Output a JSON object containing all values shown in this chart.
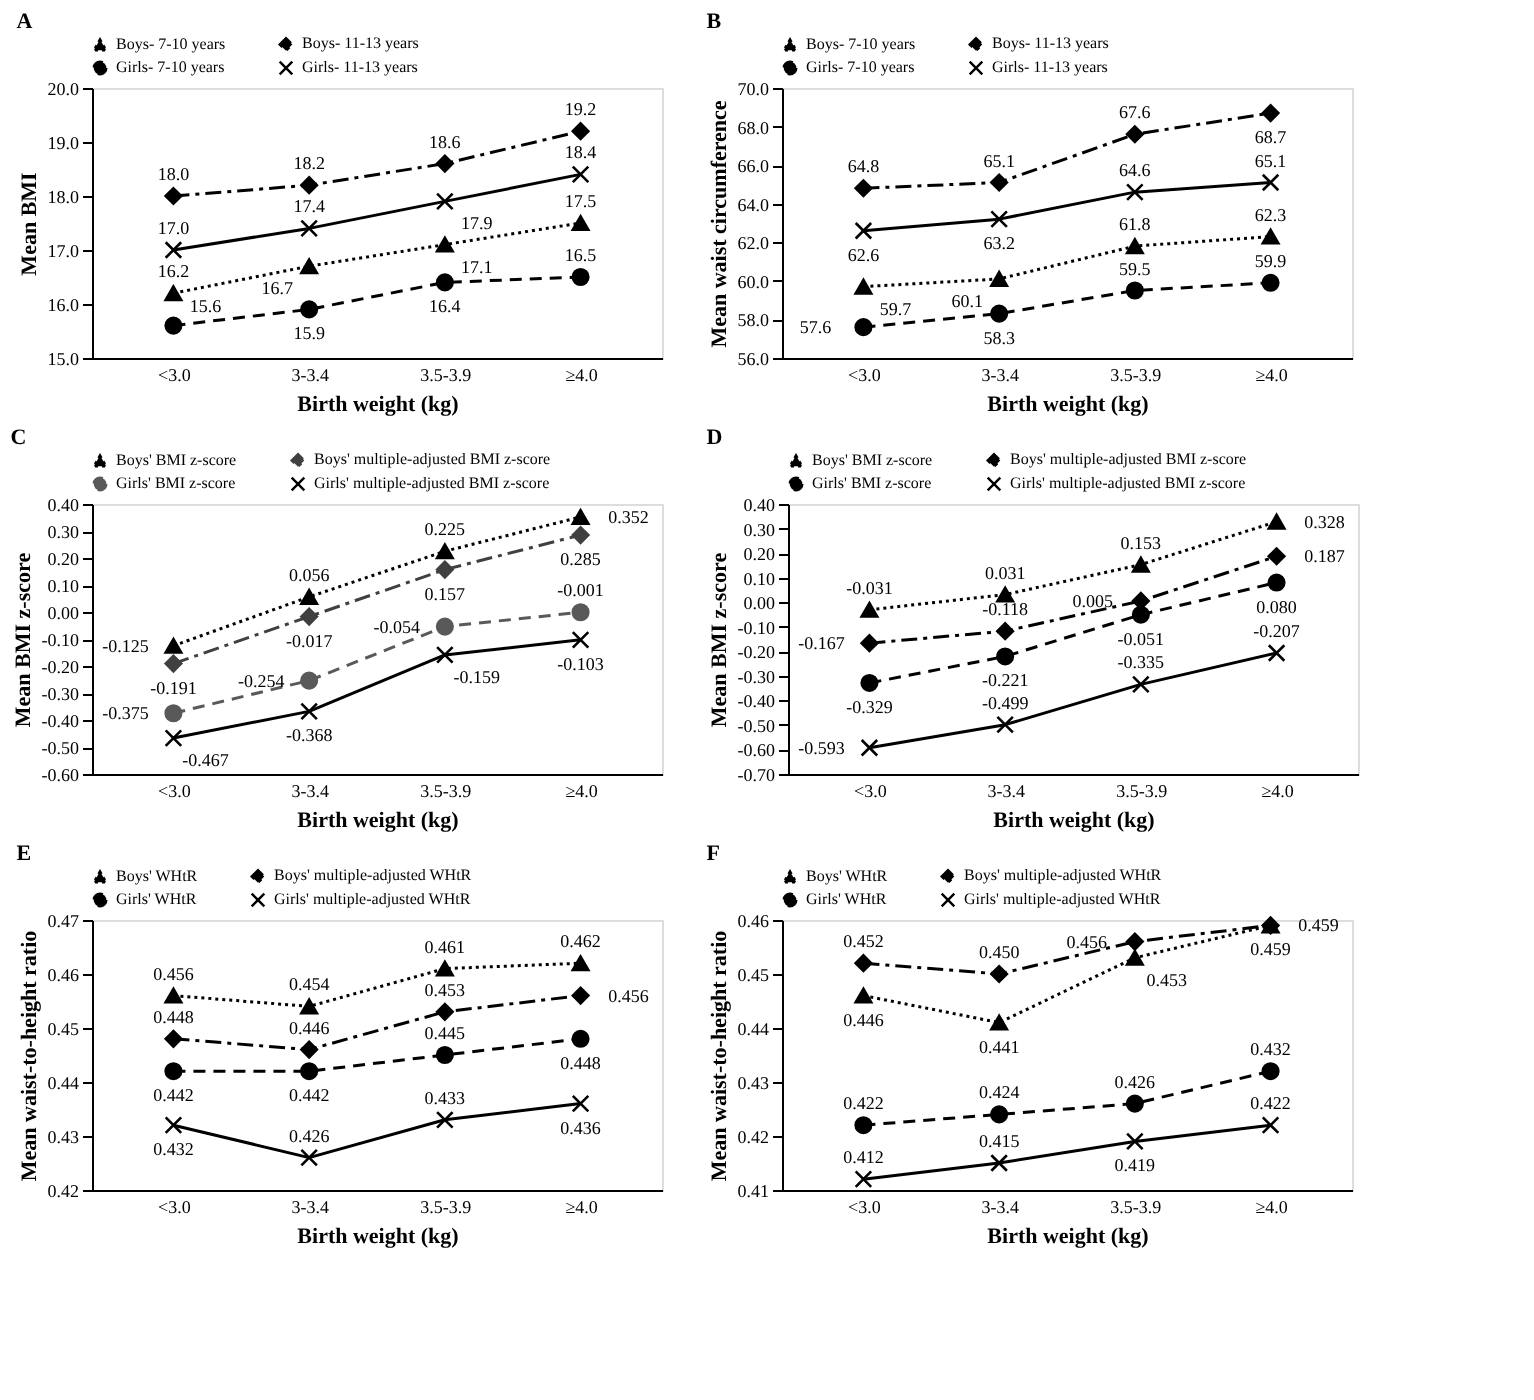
{
  "chart_data": [
    {
      "type": "line",
      "title": "A",
      "xlabel": "Birth weight (kg)",
      "ylabel": "Mean BMI",
      "categories": [
        "<3.0",
        "3-3.4",
        "3.5-3.9",
        "≥4.0"
      ],
      "ylim": [
        15,
        20
      ],
      "yticks": [
        {
          "value": 15,
          "label": "15.0"
        },
        {
          "value": 16,
          "label": "16.0"
        },
        {
          "value": 17,
          "label": "17.0"
        },
        {
          "value": 18,
          "label": "18.0"
        },
        {
          "value": 19,
          "label": "19.0"
        },
        {
          "value": 20,
          "label": "20.0"
        }
      ],
      "grid": false,
      "legend": "top",
      "series": [
        {
          "name": "Boys- 7-10 years",
          "color": "#000000",
          "marker": "triangle",
          "line_style": "dotted",
          "values": [
            16.2,
            16.7,
            17.1,
            17.5
          ],
          "value_labels": [
            "16.2",
            "16.7",
            "17.1",
            "17.5"
          ]
        },
        {
          "name": "Boys- 11-13 years",
          "color": "#000000",
          "marker": "diamond",
          "line_style": "dashdot",
          "values": [
            18.0,
            18.2,
            18.6,
            19.2
          ],
          "value_labels": [
            "18.0",
            "18.2",
            "18.6",
            "19.2"
          ]
        },
        {
          "name": "Girls- 7-10 years",
          "color": "#000000",
          "marker": "circle",
          "line_style": "dashed",
          "values": [
            15.6,
            15.9,
            16.4,
            16.5
          ],
          "value_labels": [
            "15.6",
            "15.9",
            "16.4",
            "16.5"
          ]
        },
        {
          "name": "Girls- 11-13 years",
          "color": "#000000",
          "marker": "cross",
          "line_style": "solid",
          "values": [
            17.0,
            17.4,
            17.9,
            18.4
          ],
          "value_labels": [
            "17.0",
            "17.4",
            "17.9",
            "18.4"
          ]
        }
      ]
    },
    {
      "type": "line",
      "title": "B",
      "xlabel": "Birth weight (kg)",
      "ylabel": "Mean waist circumference",
      "categories": [
        "<3.0",
        "3-3.4",
        "3.5-3.9",
        "≥4.0"
      ],
      "ylim": [
        56,
        70
      ],
      "yticks": [
        {
          "value": 56,
          "label": "56.0"
        },
        {
          "value": 58,
          "label": "58.0"
        },
        {
          "value": 60,
          "label": "60.0"
        },
        {
          "value": 62,
          "label": "62.0"
        },
        {
          "value": 64,
          "label": "64.0"
        },
        {
          "value": 66,
          "label": "66.0"
        },
        {
          "value": 68,
          "label": "68.0"
        },
        {
          "value": 70,
          "label": "70.0"
        }
      ],
      "grid": false,
      "legend": "top",
      "series": [
        {
          "name": "Boys- 7-10 years",
          "color": "#000000",
          "marker": "triangle",
          "line_style": "dotted",
          "values": [
            59.7,
            60.1,
            61.8,
            62.3
          ],
          "value_labels": [
            "59.7",
            "60.1",
            "61.8",
            "62.3"
          ]
        },
        {
          "name": "Boys- 11-13 years",
          "color": "#000000",
          "marker": "diamond",
          "line_style": "dashdot",
          "values": [
            64.8,
            65.1,
            67.6,
            68.7
          ],
          "value_labels": [
            "64.8",
            "65.1",
            "67.6",
            "68.7"
          ]
        },
        {
          "name": "Girls- 7-10 years",
          "color": "#000000",
          "marker": "circle",
          "line_style": "dashed",
          "values": [
            57.6,
            58.3,
            59.5,
            59.9
          ],
          "value_labels": [
            "57.6",
            "58.3",
            "59.5",
            "59.9"
          ]
        },
        {
          "name": "Girls- 11-13 years",
          "color": "#000000",
          "marker": "cross",
          "line_style": "solid",
          "values": [
            62.6,
            63.2,
            64.6,
            65.1
          ],
          "value_labels": [
            "62.6",
            "63.2",
            "64.6",
            "65.1"
          ]
        }
      ]
    },
    {
      "type": "line",
      "title": "C",
      "xlabel": "Birth weight (kg)",
      "ylabel": "Mean BMI z-score",
      "categories": [
        "<3.0",
        "3-3.4",
        "3.5-3.9",
        "≥4.0"
      ],
      "ylim": [
        -0.6,
        0.4
      ],
      "yticks": [
        {
          "value": -0.6,
          "label": "-0.60"
        },
        {
          "value": -0.5,
          "label": "-0.50"
        },
        {
          "value": -0.4,
          "label": "-0.40"
        },
        {
          "value": -0.3,
          "label": "-0.30"
        },
        {
          "value": -0.2,
          "label": "-0.20"
        },
        {
          "value": -0.1,
          "label": "-0.10"
        },
        {
          "value": 0,
          "label": "0.00"
        },
        {
          "value": 0.1,
          "label": "0.10"
        },
        {
          "value": 0.2,
          "label": "0.20"
        },
        {
          "value": 0.3,
          "label": "0.30"
        },
        {
          "value": 0.4,
          "label": "0.40"
        }
      ],
      "grid": false,
      "legend": "top",
      "series": [
        {
          "name": "Boys' BMI z-score",
          "color": "#000000",
          "marker": "triangle",
          "line_style": "dotted",
          "values": [
            -0.125,
            0.056,
            0.225,
            0.352
          ],
          "value_labels": [
            "-0.125",
            "0.056",
            "0.225",
            "0.352"
          ]
        },
        {
          "name": "Boys' multiple-adjusted BMI z-score",
          "color": "#404040",
          "marker": "diamond",
          "line_style": "dashdot",
          "values": [
            -0.191,
            -0.017,
            0.157,
            0.285
          ],
          "value_labels": [
            "-0.191",
            "-0.017",
            "0.157",
            "0.285"
          ]
        },
        {
          "name": "Girls' BMI z-score",
          "color": "#595959",
          "marker": "circle",
          "line_style": "dashed",
          "values": [
            -0.375,
            -0.254,
            -0.054,
            -0.001
          ],
          "value_labels": [
            "-0.375",
            "-0.254",
            "-0.054",
            "-0.001"
          ]
        },
        {
          "name": "Girls' multiple-adjusted BMI z-score",
          "color": "#000000",
          "marker": "cross",
          "line_style": "solid",
          "values": [
            -0.467,
            -0.368,
            -0.159,
            -0.103
          ],
          "value_labels": [
            "-0.467",
            "-0.368",
            "-0.159",
            "-0.103"
          ]
        }
      ]
    },
    {
      "type": "line",
      "title": "D",
      "xlabel": "Birth weight (kg)",
      "ylabel": "Mean BMI z-score",
      "categories": [
        "<3.0",
        "3-3.4",
        "3.5-3.9",
        "≥4.0"
      ],
      "ylim": [
        -0.7,
        0.4
      ],
      "yticks": [
        {
          "value": -0.7,
          "label": "-0.70"
        },
        {
          "value": -0.6,
          "label": "-0.60"
        },
        {
          "value": -0.5,
          "label": "-0.50"
        },
        {
          "value": -0.4,
          "label": "-0.40"
        },
        {
          "value": -0.3,
          "label": "-0.30"
        },
        {
          "value": -0.2,
          "label": "-0.20"
        },
        {
          "value": -0.1,
          "label": "-0.10"
        },
        {
          "value": 0,
          "label": "0.00"
        },
        {
          "value": 0.1,
          "label": "0.10"
        },
        {
          "value": 0.2,
          "label": "0.20"
        },
        {
          "value": 0.3,
          "label": "0.30"
        },
        {
          "value": 0.4,
          "label": "0.40"
        }
      ],
      "grid": false,
      "legend": "top",
      "series": [
        {
          "name": "Boys' BMI z-score",
          "color": "#000000",
          "marker": "triangle",
          "line_style": "dotted",
          "values": [
            -0.031,
            0.031,
            0.153,
            0.328
          ],
          "value_labels": [
            "-0.031",
            "0.031",
            "0.153",
            "0.328"
          ]
        },
        {
          "name": "Boys' multiple-adjusted BMI z-score",
          "color": "#000000",
          "marker": "diamond",
          "line_style": "dashdot",
          "values": [
            -0.167,
            -0.118,
            0.005,
            0.187
          ],
          "value_labels": [
            "-0.167",
            "-0.118",
            "0.005",
            "0.187"
          ]
        },
        {
          "name": "Girls' BMI z-score",
          "color": "#000000",
          "marker": "circle",
          "line_style": "dashed",
          "values": [
            -0.329,
            -0.221,
            -0.051,
            0.08
          ],
          "value_labels": [
            "-0.329",
            "-0.221",
            "-0.051",
            "0.080"
          ]
        },
        {
          "name": "Girls' multiple-adjusted BMI z-score",
          "color": "#000000",
          "marker": "cross",
          "line_style": "solid",
          "values": [
            -0.593,
            -0.499,
            -0.335,
            -0.207
          ],
          "value_labels": [
            "-0.593",
            "-0.499",
            "-0.335",
            "-0.207"
          ]
        }
      ]
    },
    {
      "type": "line",
      "title": "E",
      "xlabel": "Birth weight (kg)",
      "ylabel": "Mean waist-to-height ratio",
      "categories": [
        "<3.0",
        "3-3.4",
        "3.5-3.9",
        "≥4.0"
      ],
      "ylim": [
        0.42,
        0.47
      ],
      "yticks": [
        0.42,
        0.43,
        0.44,
        0.45,
        0.46,
        0.47
      ],
      "grid": false,
      "legend": "top",
      "series": [
        {
          "name": "Boys' WHtR",
          "color": "#000000",
          "marker": "triangle",
          "line_style": "dotted",
          "values": [
            0.456,
            0.454,
            0.461,
            0.462
          ],
          "value_labels": [
            "0.456",
            "0.454",
            "0.461",
            "0.462"
          ]
        },
        {
          "name": "Boys' multiple-adjusted WHtR",
          "color": "#000000",
          "marker": "diamond",
          "line_style": "dashdot",
          "values": [
            0.448,
            0.446,
            0.453,
            0.456
          ],
          "value_labels": [
            "0.448",
            "0.446",
            "0.453",
            "0.456"
          ]
        },
        {
          "name": "Girls' WHtR",
          "color": "#000000",
          "marker": "circle",
          "line_style": "dashed",
          "values": [
            0.442,
            0.442,
            0.445,
            0.448
          ],
          "value_labels": [
            "0.442",
            "0.442",
            "0.445",
            "0.448"
          ]
        },
        {
          "name": "Girls' multiple-adjusted WHtR",
          "color": "#000000",
          "marker": "cross",
          "line_style": "solid",
          "values": [
            0.432,
            0.426,
            0.433,
            0.436
          ],
          "value_labels": [
            "0.432",
            "0.426",
            "0.433",
            "0.436"
          ]
        }
      ]
    },
    {
      "type": "line",
      "title": "F",
      "xlabel": "Birth weight (kg)",
      "ylabel": "Mean waist-to-height ratio",
      "categories": [
        "<3.0",
        "3-3.4",
        "3.5-3.9",
        "≥4.0"
      ],
      "ylim": [
        0.41,
        0.46
      ],
      "yticks": [
        0.41,
        0.42,
        0.43,
        0.44,
        0.45,
        0.46
      ],
      "grid": false,
      "legend": "top",
      "series": [
        {
          "name": "Boys' WHtR",
          "color": "#000000",
          "marker": "triangle",
          "line_style": "dotted",
          "values": [
            0.446,
            0.441,
            0.453,
            0.459
          ],
          "value_labels": [
            "0.446",
            "0.441",
            "0.453",
            "0.459"
          ]
        },
        {
          "name": "Boys' multiple-adjusted WHtR",
          "color": "#000000",
          "marker": "diamond",
          "line_style": "dashdot",
          "values": [
            0.452,
            0.45,
            0.456,
            0.459
          ],
          "value_labels": [
            "0.452",
            "0.450",
            "0.456",
            "0.459"
          ]
        },
        {
          "name": "Girls' WHtR",
          "color": "#000000",
          "marker": "circle",
          "line_style": "dashed",
          "values": [
            0.422,
            0.424,
            0.426,
            0.432
          ],
          "value_labels": [
            "0.422",
            "0.424",
            "0.426",
            "0.432"
          ]
        },
        {
          "name": "Girls' multiple-adjusted WHtR",
          "color": "#000000",
          "marker": "cross",
          "line_style": "solid",
          "values": [
            0.412,
            0.415,
            0.419,
            0.422
          ],
          "value_labels": [
            "0.412",
            "0.415",
            "0.419",
            "0.422"
          ]
        }
      ]
    }
  ]
}
